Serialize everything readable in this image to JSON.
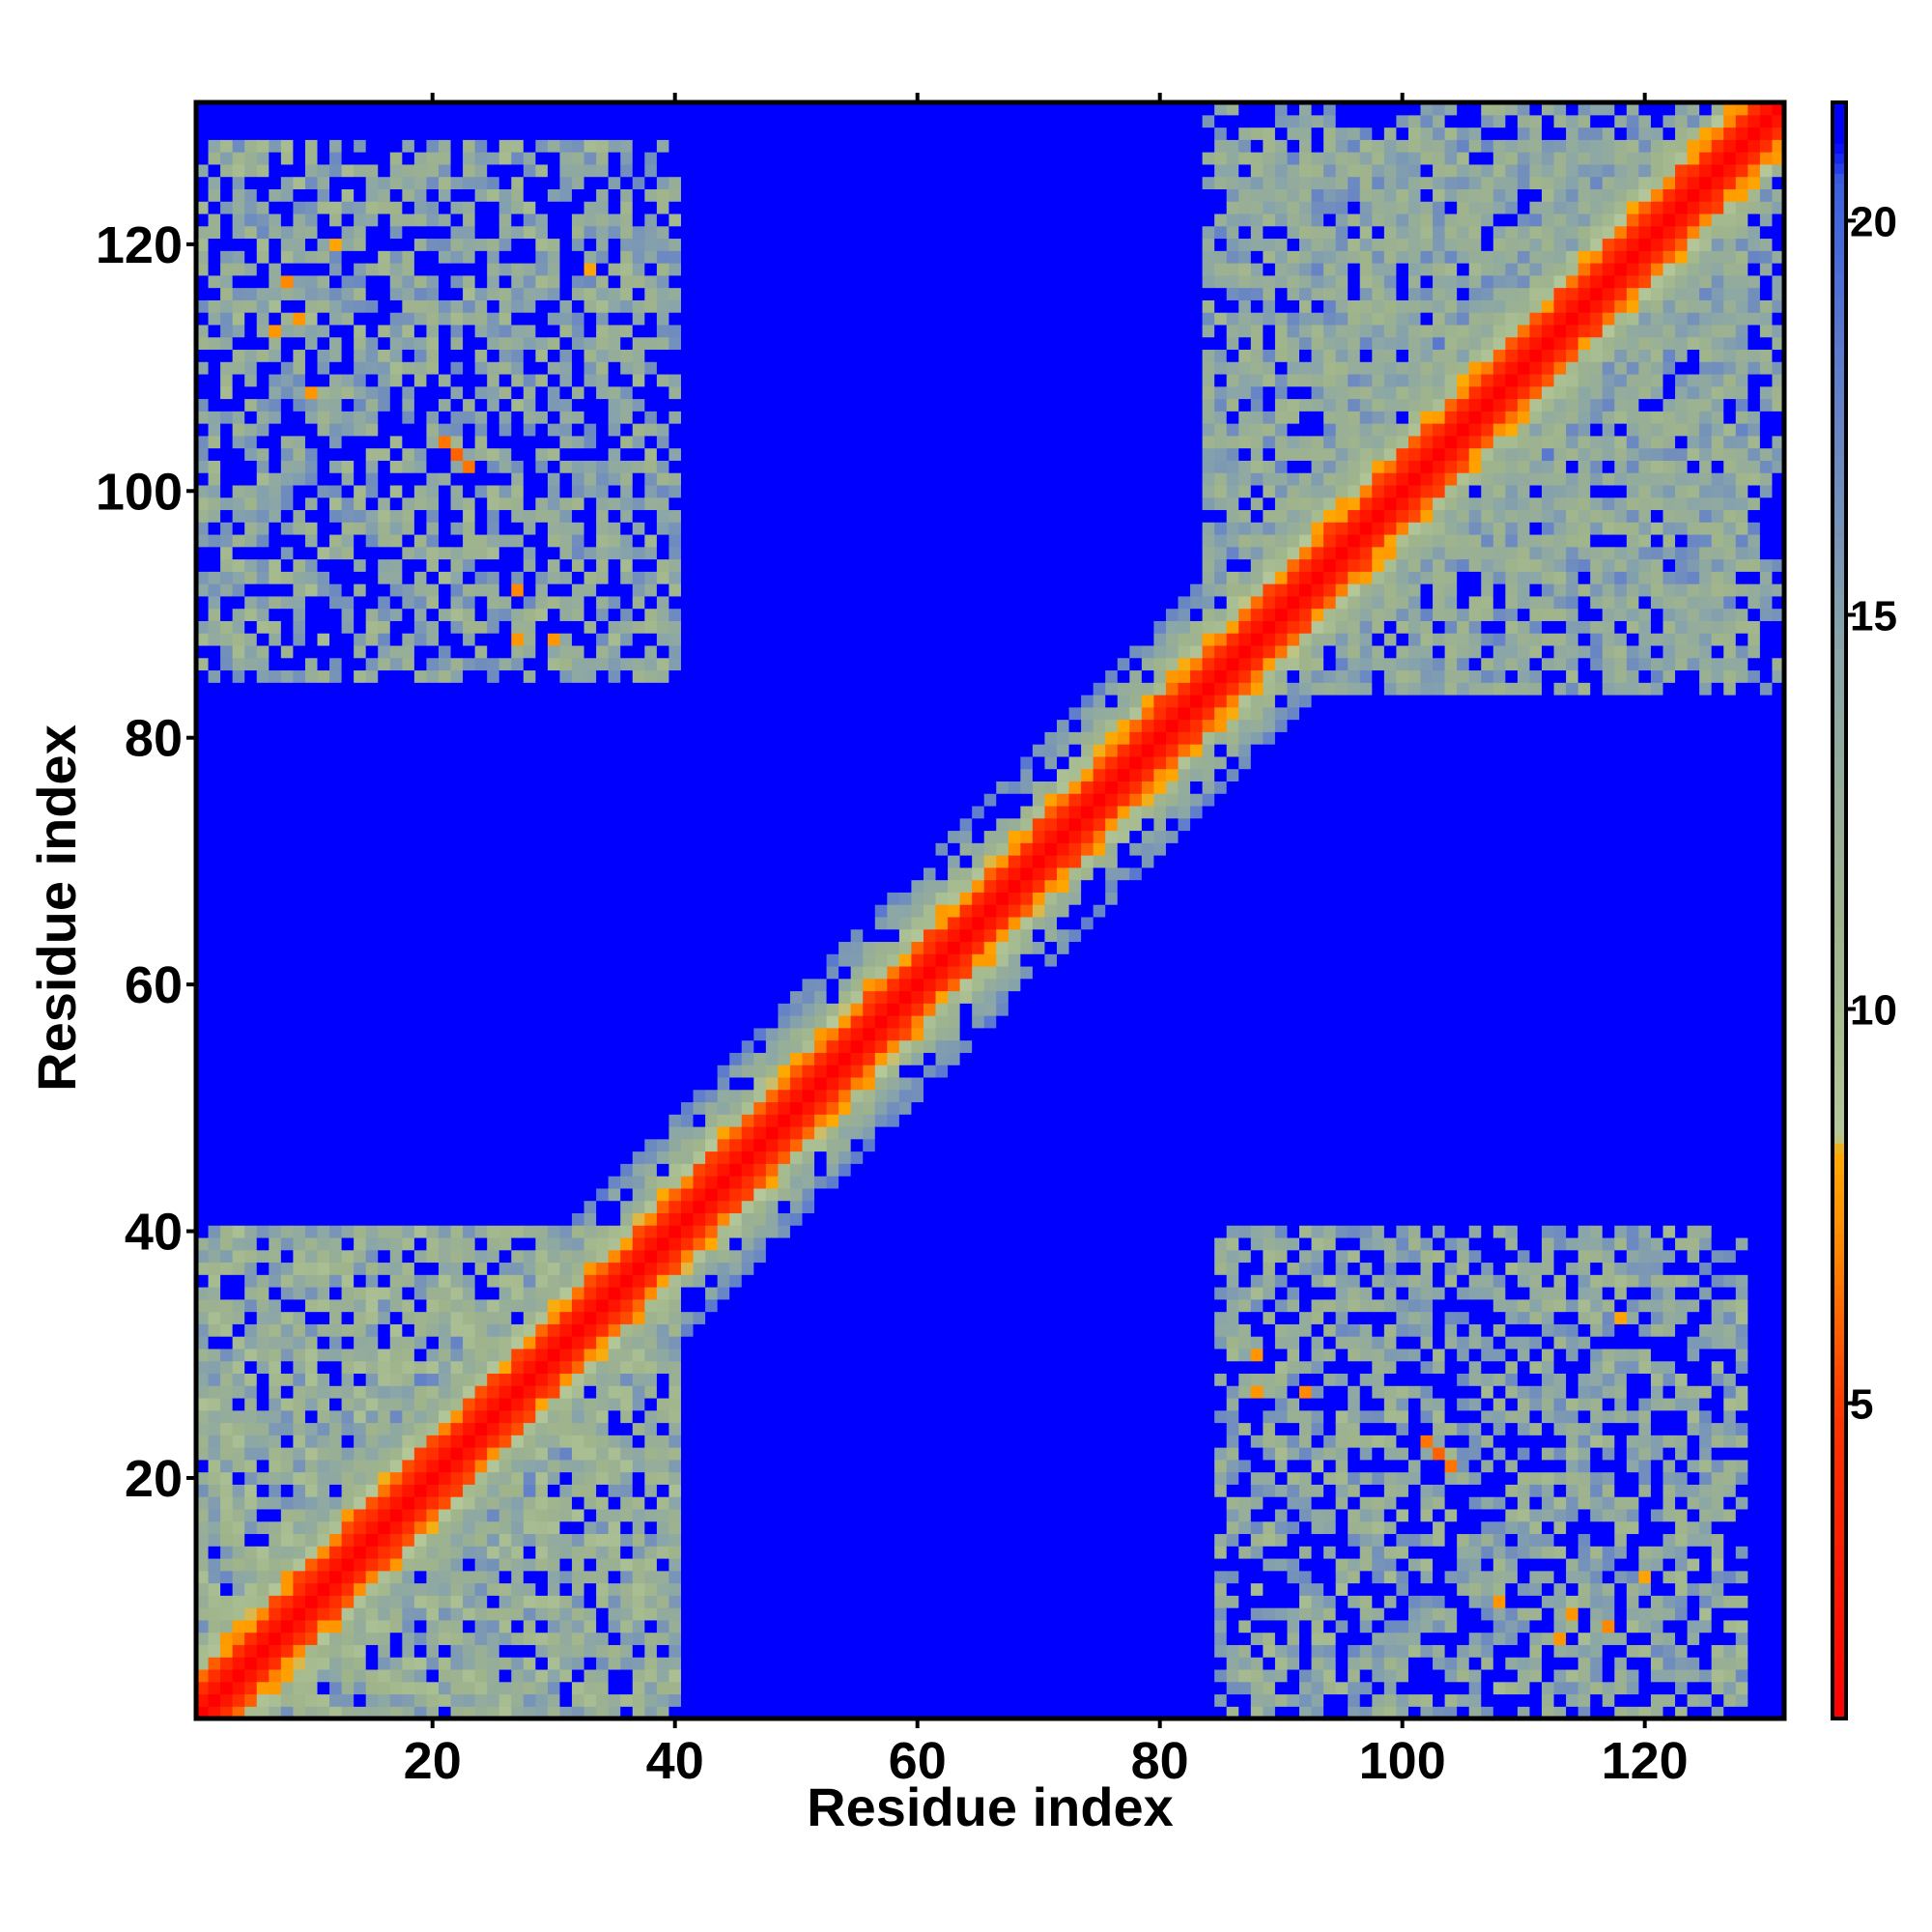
{
  "chart_data": {
    "type": "heatmap",
    "title": "",
    "xlabel": "Residue index",
    "ylabel": "Residue index",
    "n_residues": 131,
    "xlim": [
      1,
      131
    ],
    "ylim": [
      1,
      131
    ],
    "x_ticks": [
      20,
      40,
      60,
      80,
      100,
      120
    ],
    "y_ticks": [
      20,
      40,
      60,
      80,
      100,
      120
    ],
    "x_tick_labels": [
      "20",
      "40",
      "60",
      "80",
      "100",
      "120"
    ],
    "y_tick_labels": [
      "20",
      "40",
      "60",
      "80",
      "100",
      "120"
    ],
    "grid": false,
    "matrix_symmetric": true,
    "background_value": 21.4,
    "diagonal_band": [
      {
        "offset": 0,
        "value": 1.0
      },
      {
        "offset": 1,
        "value": 2.5
      },
      {
        "offset": 2,
        "value": 4.5
      },
      {
        "offset": 3,
        "value": 6.5
      },
      {
        "offset": 4,
        "value": 9.0
      },
      {
        "offset": 5,
        "value": 11.0
      },
      {
        "offset": 6,
        "value": 12.5
      },
      {
        "offset": 7,
        "value": 14.0
      },
      {
        "offset": 8,
        "value": 15.5
      },
      {
        "offset": 9,
        "value": 17.0
      }
    ],
    "contact_blocks": [
      {
        "i_range": [
          1,
          40
        ],
        "j_range": [
          85,
          128
        ],
        "mean_value": 13.0
      },
      {
        "i_range": [
          84,
          131
        ],
        "j_range": [
          84,
          128
        ],
        "mean_value": 13.5
      },
      {
        "i_range": [
          1,
          40
        ],
        "j_range": [
          1,
          40
        ],
        "mean_value": 12.5
      }
    ],
    "close_contacts": [
      {
        "i": 21,
        "j": 104,
        "value": 6.5
      },
      {
        "i": 22,
        "j": 103,
        "value": 6.0
      },
      {
        "i": 23,
        "j": 102,
        "value": 6.5
      },
      {
        "i": 8,
        "j": 117,
        "value": 7.0
      },
      {
        "i": 9,
        "j": 114,
        "value": 7.5
      },
      {
        "i": 7,
        "j": 113,
        "value": 7.5
      },
      {
        "i": 27,
        "j": 92,
        "value": 7.0
      },
      {
        "i": 27,
        "j": 88,
        "value": 7.5
      },
      {
        "i": 30,
        "j": 88,
        "value": 7.5
      },
      {
        "i": 12,
        "j": 120,
        "value": 8.0
      },
      {
        "i": 33,
        "j": 118,
        "value": 8.0
      },
      {
        "i": 10,
        "j": 108,
        "value": 7.5
      }
    ],
    "colorbar": {
      "ticks": [
        5,
        10,
        15,
        20
      ],
      "tick_labels": [
        "5",
        "10",
        "15",
        "20"
      ],
      "range": [
        1,
        21.5
      ],
      "stops": [
        {
          "value": 1.0,
          "color": "#ff0000"
        },
        {
          "value": 4.8,
          "color": "#ff3300"
        },
        {
          "value": 7.0,
          "color": "#ff8800"
        },
        {
          "value": 8.2,
          "color": "#ffaa00"
        },
        {
          "value": 8.4,
          "color": "#b4c89a"
        },
        {
          "value": 11.0,
          "color": "#a0b48c"
        },
        {
          "value": 14.5,
          "color": "#8aa6a8"
        },
        {
          "value": 18.5,
          "color": "#5a78d0"
        },
        {
          "value": 20.5,
          "color": "#3a60e0"
        },
        {
          "value": 21.0,
          "color": "#0000ff"
        }
      ]
    },
    "colors": {
      "background": "#0000ff",
      "contact": "#ff0000",
      "frame": "#000000"
    }
  }
}
